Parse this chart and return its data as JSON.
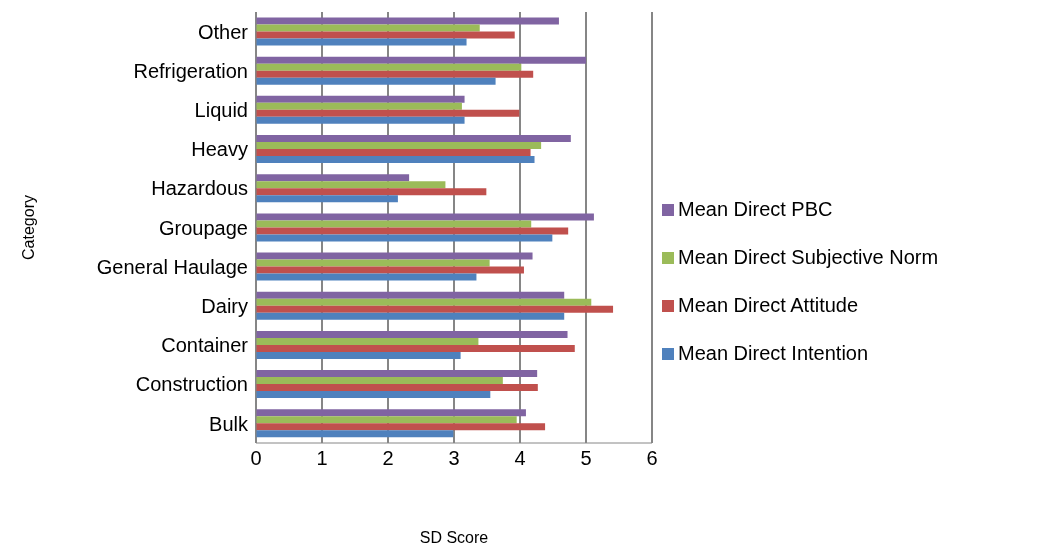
{
  "chart_data": {
    "type": "bar",
    "orientation": "horizontal",
    "xlabel": "SD Score",
    "ylabel": "Category",
    "categories": [
      "Other",
      "Refrigeration",
      "Liquid",
      "Heavy",
      "Hazardous",
      "Groupage",
      "General Haulage",
      "Dairy",
      "Container",
      "Construction",
      "Bulk"
    ],
    "series": [
      {
        "name": "Mean Direct PBC",
        "color": "#8064a2",
        "values": [
          4.59,
          5.0,
          3.16,
          4.77,
          2.32,
          5.12,
          4.19,
          4.67,
          4.72,
          4.26,
          4.09
        ]
      },
      {
        "name": "Mean Direct Subjective Norm",
        "color": "#9bbb59",
        "values": [
          3.39,
          4.02,
          3.12,
          4.32,
          2.87,
          4.17,
          3.54,
          5.08,
          3.37,
          3.74,
          3.95
        ]
      },
      {
        "name": "Mean Direct Attitude",
        "color": "#c0504d",
        "values": [
          3.92,
          4.2,
          3.99,
          4.16,
          3.49,
          4.73,
          4.06,
          5.41,
          4.83,
          4.27,
          4.38
        ]
      },
      {
        "name": "Mean Direct Intention",
        "color": "#4f81bd",
        "values": [
          3.19,
          3.63,
          3.16,
          4.22,
          2.15,
          4.49,
          3.34,
          4.67,
          3.1,
          3.55,
          2.99
        ]
      }
    ],
    "xlim": [
      0,
      6
    ],
    "xticks": [
      0,
      1,
      2,
      3,
      4,
      5,
      6
    ],
    "grid": "x",
    "legend": "right"
  }
}
